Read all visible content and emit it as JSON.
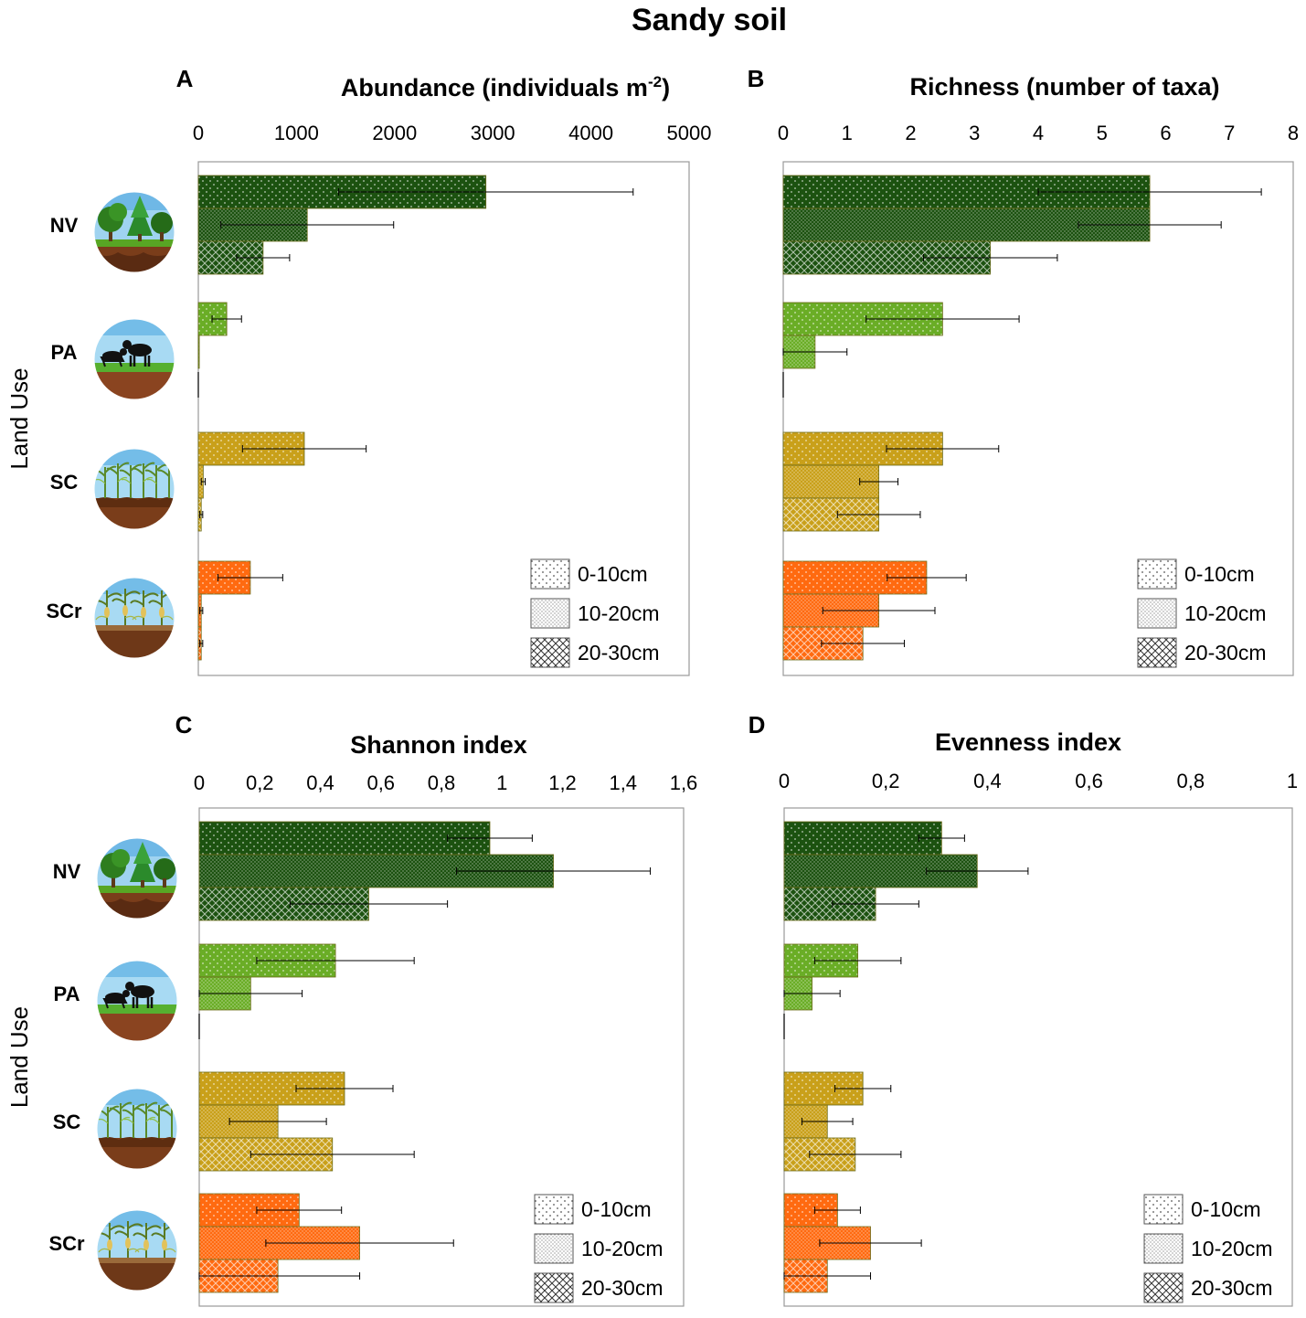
{
  "title": "Sandy soil",
  "y_axis_label": "Land Use",
  "land_use_categories": [
    "NV",
    "PA",
    "SC",
    "SCr"
  ],
  "depth_legend": [
    "0-10cm",
    "10-20cm",
    "20-30cm"
  ],
  "colors": {
    "NV": "#1c5210",
    "PA": "#6aad26",
    "SC": "#c9a01a",
    "SCr": "#ff6a10"
  },
  "icons": [
    "forest-icon",
    "pasture-cattle-icon",
    "sugarcane-icon",
    "sugarcane-residue-icon"
  ],
  "chart_data": [
    {
      "panel": "A",
      "type": "bar",
      "orientation": "horizontal",
      "title": "Abundance (individuals m",
      "title_sup": "-2",
      "title_end": ")",
      "xlim": [
        0,
        5000
      ],
      "ticks": [
        0,
        1000,
        2000,
        3000,
        4000,
        5000
      ],
      "tick_labels": [
        "0",
        "1000",
        "2000",
        "3000",
        "4000",
        "5000"
      ],
      "categories": [
        "NV",
        "PA",
        "SC",
        "SCr"
      ],
      "series": [
        {
          "name": "0-10cm",
          "values": [
            2930,
            290,
            1080,
            530
          ],
          "errors": [
            1500,
            150,
            630,
            330
          ]
        },
        {
          "name": "10-20cm",
          "values": [
            1110,
            10,
            50,
            30
          ],
          "errors": [
            880,
            0,
            20,
            15
          ]
        },
        {
          "name": "20-30cm",
          "values": [
            660,
            0,
            30,
            30
          ],
          "errors": [
            270,
            0,
            15,
            15
          ]
        }
      ]
    },
    {
      "panel": "B",
      "type": "bar",
      "orientation": "horizontal",
      "title": "Richness (number of taxa)",
      "xlim": [
        0,
        8
      ],
      "ticks": [
        0,
        1,
        2,
        3,
        4,
        5,
        6,
        7,
        8
      ],
      "tick_labels": [
        "0",
        "1",
        "2",
        "3",
        "4",
        "5",
        "6",
        "7",
        "8"
      ],
      "categories": [
        "NV",
        "PA",
        "SC",
        "SCr"
      ],
      "series": [
        {
          "name": "0-10cm",
          "values": [
            5.75,
            2.5,
            2.5,
            2.25
          ],
          "errors": [
            1.75,
            1.2,
            0.88,
            0.62
          ]
        },
        {
          "name": "10-20cm",
          "values": [
            5.75,
            0.5,
            1.5,
            1.5
          ],
          "errors": [
            1.12,
            0.5,
            0.3,
            0.88
          ]
        },
        {
          "name": "20-30cm",
          "values": [
            3.25,
            0,
            1.5,
            1.25
          ],
          "errors": [
            1.05,
            0,
            0.65,
            0.65
          ]
        }
      ]
    },
    {
      "panel": "C",
      "type": "bar",
      "orientation": "horizontal",
      "title": "Shannon index",
      "xlim": [
        0,
        1.6
      ],
      "ticks": [
        0,
        0.2,
        0.4,
        0.6,
        0.8,
        1.0,
        1.2,
        1.4,
        1.6
      ],
      "tick_labels": [
        "0",
        "0,2",
        "0,4",
        "0,6",
        "0,8",
        "1",
        "1,2",
        "1,4",
        "1,6"
      ],
      "categories": [
        "NV",
        "PA",
        "SC",
        "SCr"
      ],
      "series": [
        {
          "name": "0-10cm",
          "values": [
            0.96,
            0.45,
            0.48,
            0.33
          ],
          "errors": [
            0.14,
            0.26,
            0.16,
            0.14
          ]
        },
        {
          "name": "10-20cm",
          "values": [
            1.17,
            0.17,
            0.26,
            0.53
          ],
          "errors": [
            0.32,
            0.17,
            0.16,
            0.31
          ]
        },
        {
          "name": "20-30cm",
          "values": [
            0.56,
            0,
            0.44,
            0.26
          ],
          "errors": [
            0.26,
            0,
            0.27,
            0.27
          ]
        }
      ]
    },
    {
      "panel": "D",
      "type": "bar",
      "orientation": "horizontal",
      "title": "Evenness index",
      "xlim": [
        0,
        1
      ],
      "ticks": [
        0,
        0.2,
        0.4,
        0.6,
        0.8,
        1.0
      ],
      "tick_labels": [
        "0",
        "0,2",
        "0,4",
        "0,6",
        "0,8",
        "1"
      ],
      "categories": [
        "NV",
        "PA",
        "SC",
        "SCr"
      ],
      "series": [
        {
          "name": "0-10cm",
          "values": [
            0.31,
            0.145,
            0.155,
            0.105
          ],
          "errors": [
            0.045,
            0.085,
            0.055,
            0.045
          ]
        },
        {
          "name": "10-20cm",
          "values": [
            0.38,
            0.055,
            0.085,
            0.17
          ],
          "errors": [
            0.1,
            0.055,
            0.05,
            0.1
          ]
        },
        {
          "name": "20-30cm",
          "values": [
            0.18,
            0,
            0.14,
            0.085
          ],
          "errors": [
            0.085,
            0,
            0.09,
            0.085
          ]
        }
      ]
    }
  ]
}
